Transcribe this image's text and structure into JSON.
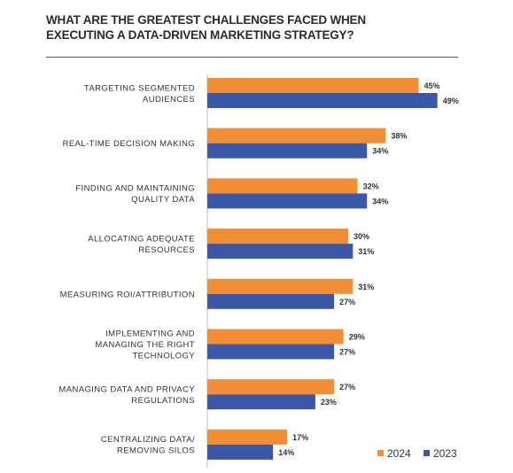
{
  "chart_data": {
    "type": "bar",
    "orientation": "horizontal",
    "title_lines": [
      "WHAT ARE THE GREATEST CHALLENGES FACED WHEN",
      "EXECUTING A DATA-DRIVEN MARKETING STRATEGY?"
    ],
    "categories": [
      [
        "TARGETING SEGMENTED",
        "AUDIENCES"
      ],
      [
        "REAL-TIME DECISION MAKING"
      ],
      [
        "FINDING AND MAINTAINING",
        "QUALITY DATA"
      ],
      [
        "ALLOCATING ADEQUATE",
        "RESOURCES"
      ],
      [
        "MEASURING ROI/ATTRIBUTION"
      ],
      [
        "IMPLEMENTING AND",
        "MANAGING THE RIGHT",
        "TECHNOLOGY"
      ],
      [
        "MANAGING DATA AND PRIVACY",
        "REGULATIONS"
      ],
      [
        "CENTRALIZING DATA/",
        "REMOVING SILOS"
      ]
    ],
    "series": [
      {
        "name": "2024",
        "color": "#f28e35",
        "values": [
          45,
          38,
          32,
          30,
          31,
          29,
          27,
          17
        ],
        "labels": [
          "45%",
          "38%",
          "32%",
          "30%",
          "31%",
          "29%",
          "27%",
          "17%"
        ]
      },
      {
        "name": "2023",
        "color": "#3a57a8",
        "values": [
          49,
          34,
          34,
          31,
          27,
          27,
          23,
          14
        ],
        "labels": [
          "49%",
          "34%",
          "34%",
          "31%",
          "27%",
          "27%",
          "23%",
          "14%"
        ]
      }
    ],
    "xlim": [
      0,
      50
    ],
    "grid": false,
    "legend_position": "bottom-right"
  }
}
